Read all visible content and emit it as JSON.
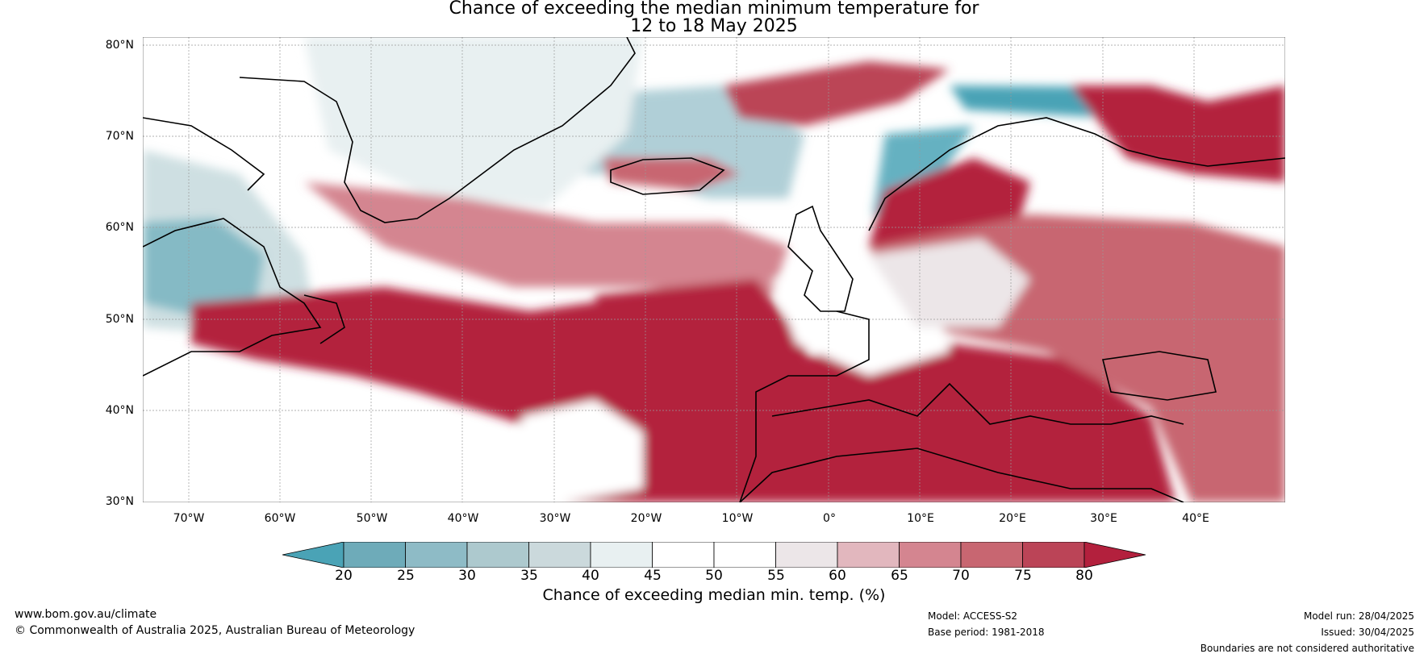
{
  "title": {
    "line1": "Chance of exceeding the median minimum temperature for",
    "line2": "12 to 18 May 2025"
  },
  "map": {
    "lat_labels": [
      "80°N",
      "70°N",
      "60°N",
      "50°N",
      "40°N",
      "30°N"
    ],
    "lon_labels": [
      "70°W",
      "60°W",
      "50°W",
      "40°W",
      "30°W",
      "20°W",
      "10°W",
      "0°",
      "10°E",
      "20°E",
      "30°E",
      "40°E"
    ],
    "lat_range": [
      30,
      81
    ],
    "lon_range": [
      -75,
      50
    ]
  },
  "colorbar": {
    "title": "Chance of exceeding median min. temp. (%)",
    "tick_labels": [
      "20",
      "25",
      "30",
      "35",
      "40",
      "45",
      "50",
      "55",
      "60",
      "65",
      "70",
      "75",
      "80"
    ],
    "colors": [
      "#4aa3b6",
      "#6eabb9",
      "#8ebbc6",
      "#adc9ce",
      "#cbd9dc",
      "#e8f0f1",
      "#ffffff",
      "#ffffff",
      "#ece6e8",
      "#e2b7be",
      "#d48590",
      "#c86671",
      "#bb4457",
      "#b3203d"
    ]
  },
  "footer": {
    "website": "www.bom.gov.au/climate",
    "copyright": "© Commonwealth of Australia 2025, Australian Bureau of Meteorology",
    "model": "Model: ACCESS-S2",
    "base_period": "Base period: 1981-2018",
    "model_run": "Model run: 28/04/2025",
    "issued": "Issued: 30/04/2025",
    "disclaimer": "Boundaries are not considered authoritative"
  }
}
